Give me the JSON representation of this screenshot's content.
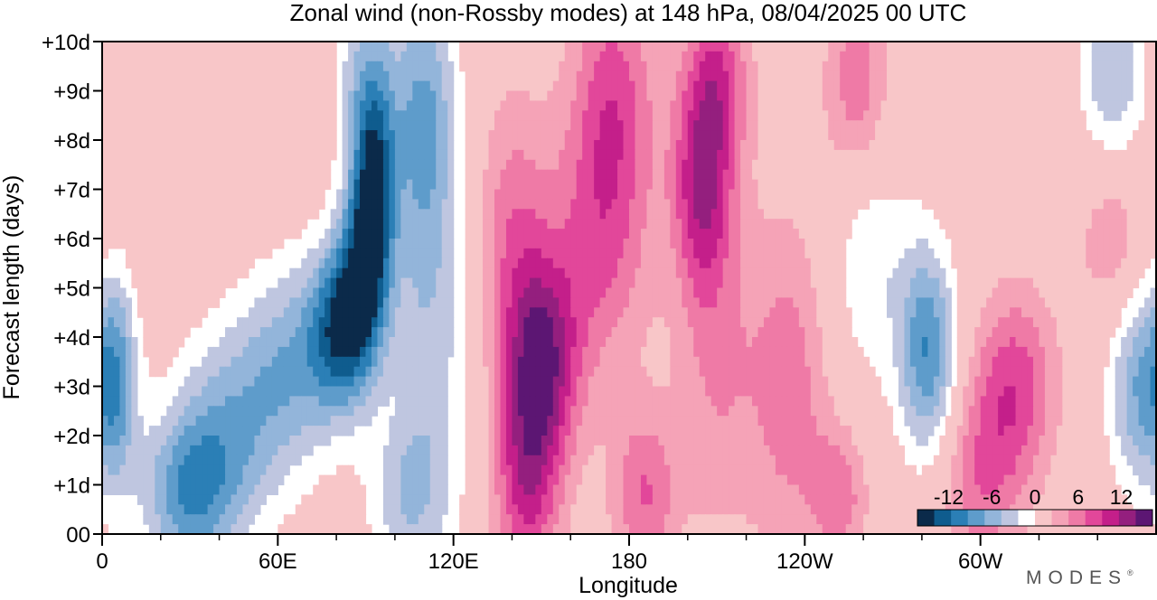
{
  "chart_data": {
    "type": "heatmap",
    "title": "Zonal wind (non-Rossby modes) at 148 hPa,  08/04/2025  00 UTC",
    "xlabel": "Longitude",
    "ylabel": "Forecast length (days)",
    "x_ticks": [
      {
        "lon": 0,
        "label": "0"
      },
      {
        "lon": 60,
        "label": "60E"
      },
      {
        "lon": 120,
        "label": "120E"
      },
      {
        "lon": 180,
        "label": "180"
      },
      {
        "lon": 240,
        "label": "120W"
      },
      {
        "lon": 300,
        "label": "60W"
      }
    ],
    "x_minor_step": 20,
    "xlim": [
      0,
      360
    ],
    "y_ticks": [
      {
        "day": 0,
        "label": "00"
      },
      {
        "day": 1,
        "label": "+1d"
      },
      {
        "day": 2,
        "label": "+2d"
      },
      {
        "day": 3,
        "label": "+3d"
      },
      {
        "day": 4,
        "label": "+4d"
      },
      {
        "day": 5,
        "label": "+5d"
      },
      {
        "day": 6,
        "label": "+6d"
      },
      {
        "day": 7,
        "label": "+7d"
      },
      {
        "day": 8,
        "label": "+8d"
      },
      {
        "day": 9,
        "label": "+9d"
      },
      {
        "day": 10,
        "label": "+10d"
      }
    ],
    "ylim": [
      0,
      10
    ],
    "colorbar": {
      "levels": [
        -14,
        -12,
        -10,
        -8,
        -6,
        -4,
        -2,
        2,
        4,
        6,
        8,
        10,
        12,
        14
      ],
      "labels": [
        {
          "value": -12,
          "label": "-12"
        },
        {
          "value": -6,
          "label": "-6"
        },
        {
          "value": 0,
          "label": "0"
        },
        {
          "value": 6,
          "label": "6"
        },
        {
          "value": 12,
          "label": "12"
        }
      ],
      "colors": [
        "#0b2a4a",
        "#0f5c8e",
        "#2b7fb6",
        "#5e9ccb",
        "#93b5da",
        "#bfc6e0",
        "#ffffff",
        "#f8c6c8",
        "#f5a3b7",
        "#ef7aa6",
        "#e2479a",
        "#c41f8a",
        "#941f7e",
        "#5c1673"
      ]
    },
    "features": [
      {
        "lon": 5,
        "day": 3.2,
        "amp": -7,
        "slon": 5,
        "sday": 1.5
      },
      {
        "lon": 30,
        "day": 0.8,
        "amp": -9,
        "slon": 12,
        "sday": 1.2
      },
      {
        "lon": 45,
        "day": 2.3,
        "amp": -6,
        "slon": 14,
        "sday": 1.5
      },
      {
        "lon": 65,
        "day": 3.5,
        "amp": -6,
        "slon": 12,
        "sday": 1.5
      },
      {
        "lon": 82,
        "day": 4.2,
        "amp": -12,
        "slon": 8,
        "sday": 1.2
      },
      {
        "lon": 90,
        "day": 5.5,
        "amp": -11,
        "slon": 6,
        "sday": 1.3
      },
      {
        "lon": 93,
        "day": 7.3,
        "amp": -10,
        "slon": 5,
        "sday": 1.3
      },
      {
        "lon": 90,
        "day": 9.3,
        "amp": -6,
        "slon": 7,
        "sday": 1.5
      },
      {
        "lon": 110,
        "day": 8.5,
        "amp": -8,
        "slon": 8,
        "sday": 2.0
      },
      {
        "lon": 112,
        "day": 4.0,
        "amp": -5,
        "slon": 10,
        "sday": 2.5
      },
      {
        "lon": 105,
        "day": 0.7,
        "amp": -5,
        "slon": 10,
        "sday": 1.2
      },
      {
        "lon": 150,
        "day": 3.5,
        "amp": 11,
        "slon": 9,
        "sday": 1.5
      },
      {
        "lon": 145,
        "day": 1.0,
        "amp": 8,
        "slon": 8,
        "sday": 1.5
      },
      {
        "lon": 140,
        "day": 6.2,
        "amp": 5,
        "slon": 9,
        "sday": 2.0
      },
      {
        "lon": 170,
        "day": 6.0,
        "amp": 6,
        "slon": 12,
        "sday": 2.0
      },
      {
        "lon": 175,
        "day": 9.0,
        "amp": 6,
        "slon": 10,
        "sday": 1.8
      },
      {
        "lon": 185,
        "day": 0.8,
        "amp": 6,
        "slon": 8,
        "sday": 1.2
      },
      {
        "lon": 205,
        "day": 7.0,
        "amp": 9,
        "slon": 7,
        "sday": 1.5
      },
      {
        "lon": 210,
        "day": 9.3,
        "amp": 7,
        "slon": 8,
        "sday": 1.3
      },
      {
        "lon": 210,
        "day": 3.5,
        "amp": 4,
        "slon": 10,
        "sday": 2.5
      },
      {
        "lon": 235,
        "day": 3.0,
        "amp": 5,
        "slon": 10,
        "sday": 2.5
      },
      {
        "lon": 258,
        "day": 9.0,
        "amp": 6,
        "slon": 8,
        "sday": 1.5
      },
      {
        "lon": 252,
        "day": 0.8,
        "amp": 5,
        "slon": 7,
        "sday": 1.0
      },
      {
        "lon": 282,
        "day": 3.7,
        "amp": -10,
        "slon": 7,
        "sday": 1.5
      },
      {
        "lon": 262,
        "day": 5.8,
        "amp": -4,
        "slon": 10,
        "sday": 2.0
      },
      {
        "lon": 312,
        "day": 3.0,
        "amp": 7,
        "slon": 10,
        "sday": 1.4
      },
      {
        "lon": 300,
        "day": 1.0,
        "amp": 5,
        "slon": 10,
        "sday": 1.5
      },
      {
        "lon": 355,
        "day": 3.0,
        "amp": -8,
        "slon": 8,
        "sday": 1.5
      },
      {
        "lon": 345,
        "day": 9.5,
        "amp": -6,
        "slon": 8,
        "sday": 1.5
      },
      {
        "lon": 345,
        "day": 6.0,
        "amp": 4,
        "slon": 8,
        "sday": 1.2
      }
    ]
  },
  "brand": {
    "text": "MODES",
    "mark": "®"
  }
}
